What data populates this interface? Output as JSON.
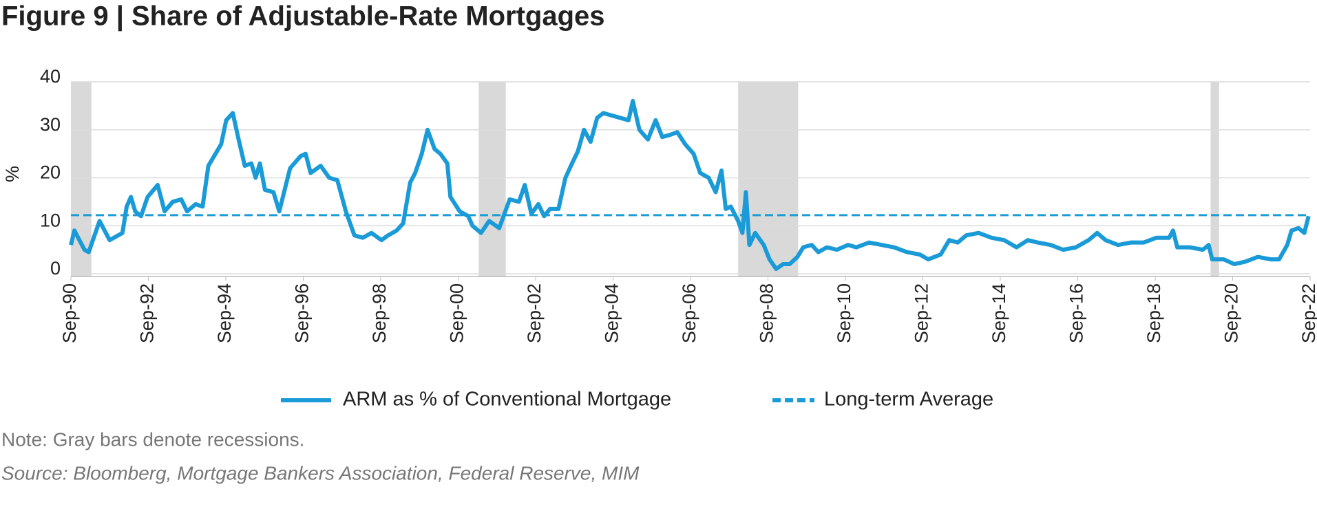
{
  "chart_data": {
    "type": "line",
    "title": "Figure 9  |  Share of Adjustable-Rate Mortgages",
    "y_label": "%",
    "note": "Note: Gray bars denote recessions.",
    "source": "Source: Bloomberg, Mortgage Bankers Association, Federal Reserve, MIM",
    "x": [
      1990.67,
      1990.76,
      1991.02,
      1991.13,
      1991.41,
      1991.67,
      1992.0,
      1992.11,
      1992.22,
      1992.33,
      1992.48,
      1992.65,
      1992.91,
      1993.09,
      1993.3,
      1993.52,
      1993.67,
      1993.89,
      1994.07,
      1994.22,
      1994.55,
      1994.68,
      1994.85,
      1995.0,
      1995.16,
      1995.33,
      1995.44,
      1995.55,
      1995.68,
      1995.9,
      1996.05,
      1996.33,
      1996.6,
      1996.73,
      1996.86,
      1997.12,
      1997.34,
      1997.55,
      1997.77,
      1997.99,
      1998.21,
      1998.43,
      1998.69,
      1998.86,
      1999.08,
      1999.25,
      1999.43,
      1999.56,
      1999.73,
      1999.88,
      2000.06,
      2000.21,
      2000.39,
      2000.47,
      2000.71,
      2000.93,
      2001.04,
      2001.26,
      2001.47,
      2001.73,
      2002.0,
      2002.24,
      2002.39,
      2002.56,
      2002.74,
      2002.89,
      2003.04,
      2003.26,
      2003.44,
      2003.61,
      2003.76,
      2003.92,
      2004.09,
      2004.26,
      2004.42,
      2004.63,
      2004.85,
      2005.07,
      2005.18,
      2005.35,
      2005.57,
      2005.77,
      2005.94,
      2006.16,
      2006.33,
      2006.53,
      2006.75,
      2006.92,
      2007.14,
      2007.32,
      2007.47,
      2007.58,
      2007.71,
      2007.9,
      2008.01,
      2008.1,
      2008.19,
      2008.34,
      2008.56,
      2008.71,
      2008.88,
      2009.06,
      2009.23,
      2009.43,
      2009.58,
      2009.8,
      2009.97,
      2010.19,
      2010.45,
      2010.74,
      2010.95,
      2011.28,
      2011.61,
      2011.93,
      2012.26,
      2012.59,
      2012.81,
      2013.13,
      2013.35,
      2013.57,
      2013.79,
      2014.11,
      2014.44,
      2014.77,
      2015.09,
      2015.38,
      2015.64,
      2015.97,
      2016.29,
      2016.62,
      2016.95,
      2017.17,
      2017.39,
      2017.71,
      2018.04,
      2018.37,
      2018.7,
      2019.03,
      2019.13,
      2019.24,
      2019.57,
      2019.9,
      2020.05,
      2020.14,
      2020.44,
      2020.71,
      2020.99,
      2021.32,
      2021.65,
      2021.87,
      2022.08,
      2022.19,
      2022.37,
      2022.52,
      2022.63
    ],
    "series": [
      {
        "name": "ARM as % of Conventional Mortgage",
        "color": "#1a9bd7",
        "values": [
          6,
          9,
          5,
          4.5,
          11,
          7,
          8.5,
          14,
          16,
          13,
          12,
          16,
          18.5,
          13,
          15,
          15.5,
          13,
          14.5,
          14,
          22.5,
          27,
          32,
          33.5,
          28,
          22.5,
          23,
          20,
          23,
          17.5,
          17,
          13,
          22,
          24.5,
          25,
          21,
          22.5,
          20,
          19.5,
          13,
          8,
          7.5,
          8.5,
          7,
          8,
          9,
          10.5,
          19,
          21,
          25,
          30,
          26,
          25,
          23,
          16,
          13,
          12,
          10,
          8.5,
          11,
          9.5,
          15.5,
          15,
          18.5,
          12.5,
          14.5,
          12,
          13.5,
          13.5,
          20,
          23,
          25.5,
          30,
          27.5,
          32.5,
          33.5,
          33,
          32.5,
          32,
          36,
          30,
          28,
          32,
          28.5,
          29,
          29.5,
          27,
          25,
          21,
          20,
          17,
          21.5,
          13.5,
          14,
          11,
          8.5,
          17,
          6,
          8.5,
          6,
          3,
          1,
          2,
          2,
          3.5,
          5.5,
          6,
          4.5,
          5.5,
          5,
          6,
          5.5,
          6.5,
          6,
          5.5,
          4.5,
          4,
          3,
          4,
          7,
          6.5,
          8,
          8.5,
          7.5,
          7,
          5.5,
          7,
          6.5,
          6,
          5,
          5.5,
          7,
          8.5,
          7,
          6,
          6.5,
          6.5,
          7.5,
          7.5,
          9,
          5.5,
          5.5,
          5,
          6,
          3,
          3,
          2,
          2.5,
          3.5,
          3,
          3,
          6,
          9,
          9.5,
          8.5,
          12
        ]
      }
    ],
    "reference_line": {
      "name": "Long-term Average",
      "color": "#1a9bd7",
      "value": 12.2,
      "dashed": true
    },
    "recessions": [
      [
        1990.67,
        1991.2
      ],
      [
        2001.2,
        2001.9
      ],
      [
        2007.9,
        2009.45
      ],
      [
        2020.1,
        2020.32
      ]
    ],
    "recession_color": "#d9d9d9",
    "xlim": [
      1990.67,
      2022.67
    ],
    "xticks": [
      {
        "value": 1990.67,
        "label": "Sep-90"
      },
      {
        "value": 1992.67,
        "label": "Sep-92"
      },
      {
        "value": 1994.67,
        "label": "Sep-94"
      },
      {
        "value": 1996.67,
        "label": "Sep-96"
      },
      {
        "value": 1998.67,
        "label": "Sep-98"
      },
      {
        "value": 2000.67,
        "label": "Sep-00"
      },
      {
        "value": 2002.67,
        "label": "Sep-02"
      },
      {
        "value": 2004.67,
        "label": "Sep-04"
      },
      {
        "value": 2006.67,
        "label": "Sep-06"
      },
      {
        "value": 2008.67,
        "label": "Sep-08"
      },
      {
        "value": 2010.67,
        "label": "Sep-10"
      },
      {
        "value": 2012.67,
        "label": "Sep-12"
      },
      {
        "value": 2014.67,
        "label": "Sep-14"
      },
      {
        "value": 2016.67,
        "label": "Sep-16"
      },
      {
        "value": 2018.67,
        "label": "Sep-18"
      },
      {
        "value": 2020.67,
        "label": "Sep-20"
      },
      {
        "value": 2022.67,
        "label": "Sep-22"
      }
    ],
    "ylim": [
      0,
      40
    ],
    "yticks": [
      0,
      10,
      20,
      30,
      40
    ],
    "grid": true
  }
}
